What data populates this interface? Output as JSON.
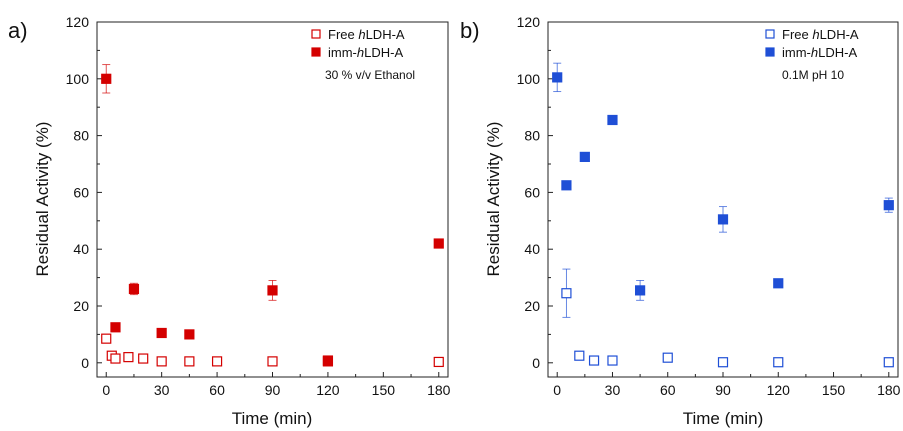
{
  "panels": [
    {
      "panel_label": "a)",
      "annotation": "30 % v/v Ethanol",
      "color": "#d40000",
      "chart_data": {
        "type": "scatter",
        "xlabel": "Time (min)",
        "ylabel": "Residual Activity (%)",
        "xlim": [
          -5,
          185
        ],
        "ylim": [
          -5,
          120
        ],
        "xticks": [
          0,
          30,
          60,
          90,
          120,
          150,
          180
        ],
        "yticks": [
          0,
          20,
          40,
          60,
          80,
          100,
          120
        ],
        "legend_position": "top-right",
        "series": [
          {
            "name": "Free hLDH-A",
            "marker": "open-square",
            "x": [
              0,
              3,
              5,
              12,
              20,
              30,
              45,
              60,
              90,
              120,
              180
            ],
            "y": [
              8.5,
              2.5,
              1.5,
              2.0,
              1.5,
              0.5,
              0.5,
              0.5,
              0.5,
              0.5,
              0.3
            ],
            "err": [
              1.0,
              1.0,
              0.5,
              1.0,
              0.5,
              0.5,
              0.5,
              0.5,
              0.5,
              0.5,
              0.5
            ]
          },
          {
            "name": "imm-hLDH-A",
            "marker": "filled-square",
            "x": [
              0,
              5,
              15,
              30,
              45,
              90,
              120,
              180
            ],
            "y": [
              100,
              12.5,
              26,
              10.5,
              10,
              25.5,
              0.8,
              42
            ],
            "err": [
              5,
              0.8,
              2.0,
              0.8,
              0.8,
              3.5,
              0.8,
              0.8
            ]
          }
        ]
      }
    },
    {
      "panel_label": "b)",
      "annotation": "0.1M pH 10",
      "color": "#1f4fd6",
      "chart_data": {
        "type": "scatter",
        "xlabel": "Time (min)",
        "ylabel": "Residual Activity (%)",
        "xlim": [
          -5,
          185
        ],
        "ylim": [
          -5,
          120
        ],
        "xticks": [
          0,
          30,
          60,
          90,
          120,
          150,
          180
        ],
        "yticks": [
          0,
          20,
          40,
          60,
          80,
          100,
          120
        ],
        "legend_position": "top-right",
        "series": [
          {
            "name": "Free hLDH-A",
            "marker": "open-square",
            "x": [
              5,
              12,
              20,
              30,
              60,
              90,
              120,
              180
            ],
            "y": [
              24.5,
              2.5,
              0.8,
              0.8,
              1.8,
              0.2,
              0.2,
              0.2
            ],
            "err": [
              8.5,
              1.0,
              0.8,
              0.8,
              1.0,
              0.8,
              0.8,
              0.5
            ]
          },
          {
            "name": "imm-hLDH-A",
            "marker": "filled-square",
            "x": [
              0,
              5,
              15,
              30,
              45,
              90,
              120,
              180
            ],
            "y": [
              100.5,
              62.5,
              72.5,
              85.5,
              25.5,
              50.5,
              28,
              55.5
            ],
            "err": [
              5,
              1.2,
              1.0,
              1.0,
              3.5,
              4.5,
              1.5,
              2.5
            ]
          }
        ]
      }
    }
  ]
}
